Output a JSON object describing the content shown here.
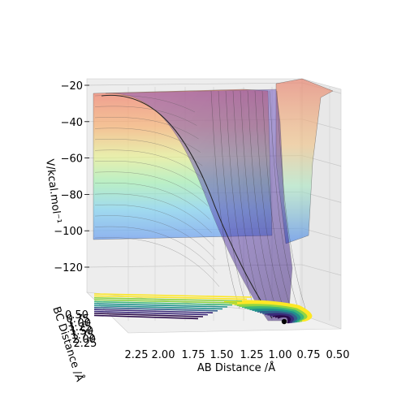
{
  "chart_data": {
    "type": "surface-3d",
    "xlabel": "AB Distance /Å",
    "ylabel": "BC Distance /Å",
    "zlabel": "V/kcal.mol⁻¹",
    "x_ticks": [
      "2.25",
      "2.00",
      "1.75",
      "1.50",
      "1.25",
      "1.00",
      "0.75",
      "0.50"
    ],
    "y_ticks": [
      "0.50",
      "0.75",
      "1.00",
      "1.25",
      "1.50",
      "1.75",
      "2.00",
      "2.25"
    ],
    "z_ticks": [
      "−20",
      "−40",
      "−60",
      "−80",
      "−100",
      "−120"
    ],
    "xlim": [
      0.5,
      2.3
    ],
    "ylim": [
      0.5,
      2.3
    ],
    "zlim": [
      -140,
      -20
    ],
    "colormap_surface": "jet",
    "colormap_contour": "viridis",
    "surface_level_colors": [
      "#8080ff",
      "#80d0ff",
      "#a0ffd0",
      "#e0ff90",
      "#ffd090",
      "#ff9070",
      "#ff7060"
    ],
    "contour_colors": [
      "#2a0a4a",
      "#3b2a7a",
      "#335f8d",
      "#21918c",
      "#3fb778",
      "#8fd444",
      "#fde725"
    ],
    "grid": true,
    "wall_color": "#ebebeb"
  }
}
